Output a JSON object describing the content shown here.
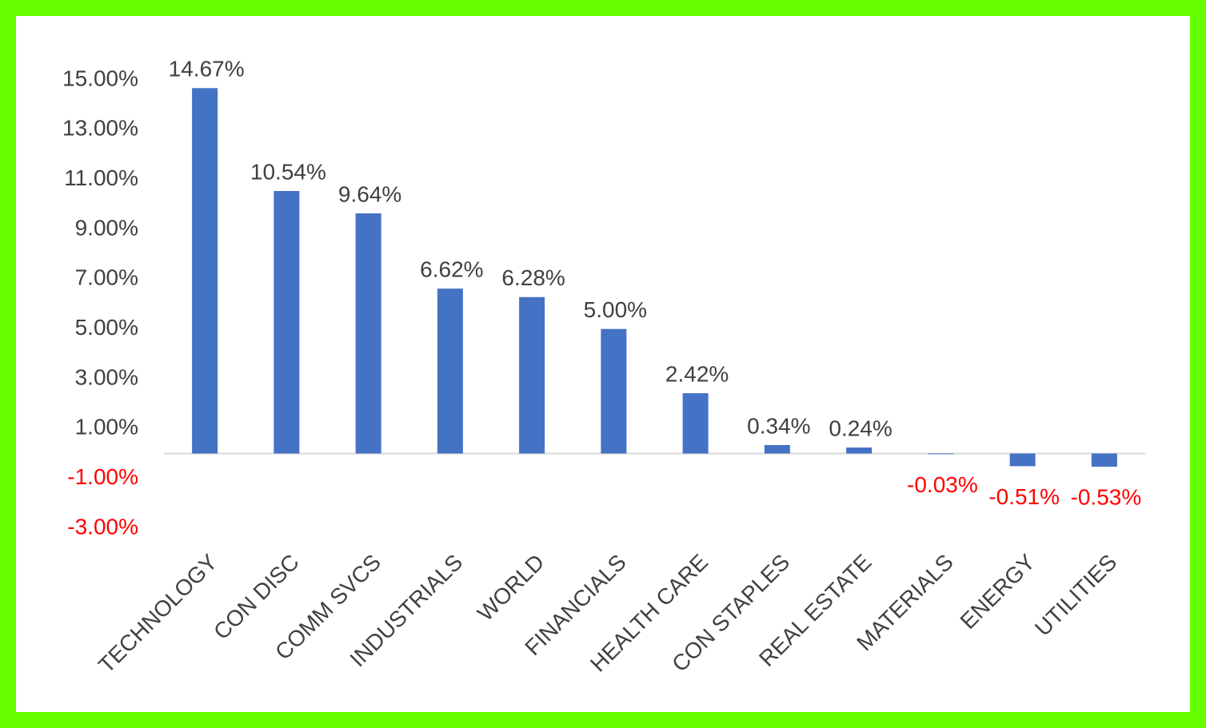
{
  "chart_data": {
    "type": "bar",
    "categories": [
      "TECHNOLOGY",
      "CON DISC",
      "COMM SVCS",
      "INDUSTRIALS",
      "WORLD",
      "FINANCIALS",
      "HEALTH CARE",
      "CON STAPLES",
      "REAL ESTATE",
      "MATERIALS",
      "ENERGY",
      "UTILITIES"
    ],
    "values": [
      14.67,
      10.54,
      9.64,
      6.62,
      6.28,
      5.0,
      2.42,
      0.34,
      0.24,
      -0.03,
      -0.51,
      -0.53
    ],
    "value_labels": [
      "14.67%",
      "10.54%",
      "9.64%",
      "6.62%",
      "6.28%",
      "5.00%",
      "2.42%",
      "0.34%",
      "0.24%",
      "-0.03%",
      "-0.51%",
      "-0.53%"
    ],
    "color": "#4472c4",
    "negative_label_color": "#ff0000",
    "ylim": [
      -3,
      15
    ],
    "yticks": [
      {
        "value": 15,
        "label": "15.00%"
      },
      {
        "value": 13,
        "label": "13.00%"
      },
      {
        "value": 11,
        "label": "11.00%"
      },
      {
        "value": 9,
        "label": "9.00%"
      },
      {
        "value": 7,
        "label": "7.00%"
      },
      {
        "value": 5,
        "label": "5.00%"
      },
      {
        "value": 3,
        "label": "3.00%"
      },
      {
        "value": 1,
        "label": "1.00%"
      },
      {
        "value": -1,
        "label": "-1.00%"
      },
      {
        "value": -3,
        "label": "-3.00%"
      }
    ],
    "grid": false
  }
}
